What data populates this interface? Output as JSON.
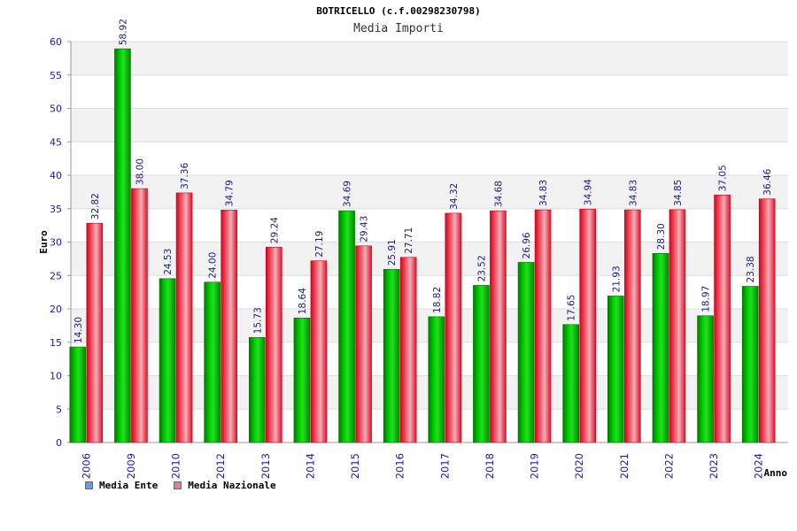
{
  "chart_data": {
    "type": "bar",
    "title": "BOTRICELLO (c.f.00298230798)",
    "subtitle": "Media Importi",
    "xlabel": "Anno",
    "ylabel": "Euro",
    "ylim": [
      0,
      60
    ],
    "yticks": [
      0,
      5,
      10,
      15,
      20,
      25,
      30,
      35,
      40,
      45,
      50,
      55,
      60
    ],
    "grid": true,
    "legend_position": "bottom-left",
    "categories": [
      "2006",
      "2009",
      "2010",
      "2012",
      "2013",
      "2014",
      "2015",
      "2016",
      "2017",
      "2018",
      "2019",
      "2020",
      "2021",
      "2022",
      "2023",
      "2024"
    ],
    "series": [
      {
        "name": "Media Ente",
        "color": "#00b000",
        "values": [
          14.3,
          58.92,
          24.53,
          24.0,
          15.73,
          18.64,
          34.69,
          25.91,
          18.82,
          23.52,
          26.96,
          17.65,
          21.93,
          28.3,
          18.97,
          23.38
        ],
        "labels": [
          "14.30",
          "58.92",
          "24.53",
          "24.00",
          "15.73",
          "18.64",
          "34.69",
          "25.91",
          "18.82",
          "23.52",
          "26.96",
          "17.65",
          "21.93",
          "28.30",
          "18.97",
          "23.38"
        ]
      },
      {
        "name": "Media Nazionale",
        "color": "#e8182c",
        "values": [
          32.82,
          38.0,
          37.36,
          34.79,
          29.24,
          27.19,
          29.43,
          27.71,
          34.32,
          34.68,
          34.83,
          34.94,
          34.83,
          34.85,
          37.05,
          36.46
        ],
        "labels": [
          "32.82",
          "38.00",
          "37.36",
          "34.79",
          "29.24",
          "27.19",
          "29.43",
          "27.71",
          "34.32",
          "34.68",
          "34.83",
          "34.94",
          "34.83",
          "34.85",
          "37.05",
          "36.46"
        ]
      }
    ]
  },
  "legend": {
    "items": [
      {
        "label": "Media Ente",
        "swatch_color": "#5ba0e6"
      },
      {
        "label": "Media Nazionale",
        "swatch_color": "#e07aa6"
      }
    ]
  }
}
